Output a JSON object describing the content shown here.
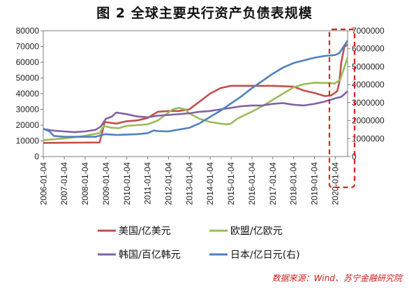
{
  "header": {
    "title": "图 2 全球主要央行资产负债表规模"
  },
  "footer": {
    "source": "数据来源：Wind、苏宁金融研究院"
  },
  "chart_data": {
    "type": "line",
    "title": "图 2 全球主要央行资产负债表规模",
    "x_ticks": [
      "2006-01-04",
      "2007-01-04",
      "2008-01-04",
      "2009-01-04",
      "2010-01-04",
      "2011-01-04",
      "2012-01-04",
      "2013-01-04",
      "2014-01-04",
      "2015-01-04",
      "2016-01-04",
      "2017-01-04",
      "2018-01-04",
      "2019-01-04",
      "2020-01-04"
    ],
    "x_range": [
      2006.0,
      2020.6
    ],
    "ylim_left": [
      0,
      80000
    ],
    "yticks_left": [
      0,
      10000,
      20000,
      30000,
      40000,
      50000,
      60000,
      70000,
      80000
    ],
    "ylim_right": [
      0,
      7000000
    ],
    "yticks_right": [
      0,
      1000000,
      2000000,
      3000000,
      4000000,
      5000000,
      6000000,
      7000000
    ],
    "grid": false,
    "legend_position": "bottom",
    "highlight": "dashed red box around 2020",
    "series": [
      {
        "name": "美国/亿美元",
        "color": "#c0504d",
        "axis": "left",
        "points": [
          [
            2006.0,
            8700
          ],
          [
            2007.0,
            8800
          ],
          [
            2008.0,
            8900
          ],
          [
            2008.7,
            9000
          ],
          [
            2008.8,
            14000
          ],
          [
            2008.95,
            22000
          ],
          [
            2009.5,
            21000
          ],
          [
            2010.0,
            22500
          ],
          [
            2010.5,
            23000
          ],
          [
            2011.0,
            24500
          ],
          [
            2011.5,
            28500
          ],
          [
            2012.0,
            29000
          ],
          [
            2012.5,
            29000
          ],
          [
            2013.0,
            30000
          ],
          [
            2013.5,
            35000
          ],
          [
            2014.0,
            40000
          ],
          [
            2014.5,
            43500
          ],
          [
            2015.0,
            45000
          ],
          [
            2016.0,
            45000
          ],
          [
            2017.0,
            45000
          ],
          [
            2018.0,
            44500
          ],
          [
            2018.5,
            42000
          ],
          [
            2019.0,
            40500
          ],
          [
            2019.5,
            38500
          ],
          [
            2019.8,
            38800
          ],
          [
            2020.1,
            41500
          ],
          [
            2020.2,
            47000
          ],
          [
            2020.3,
            60000
          ],
          [
            2020.45,
            70000
          ],
          [
            2020.6,
            71000
          ]
        ]
      },
      {
        "name": "欧盟/亿欧元",
        "color": "#9bbb59",
        "axis": "left",
        "points": [
          [
            2006.0,
            10500
          ],
          [
            2007.0,
            11500
          ],
          [
            2007.9,
            13000
          ],
          [
            2008.7,
            15000
          ],
          [
            2008.9,
            19500
          ],
          [
            2009.2,
            18500
          ],
          [
            2009.6,
            18000
          ],
          [
            2010.0,
            19500
          ],
          [
            2010.5,
            20000
          ],
          [
            2011.0,
            20500
          ],
          [
            2011.5,
            23000
          ],
          [
            2011.9,
            27000
          ],
          [
            2012.2,
            30000
          ],
          [
            2012.5,
            31000
          ],
          [
            2012.8,
            30000
          ],
          [
            2013.0,
            27500
          ],
          [
            2013.5,
            24000
          ],
          [
            2014.0,
            22000
          ],
          [
            2014.5,
            21000
          ],
          [
            2014.8,
            20500
          ],
          [
            2015.0,
            21000
          ],
          [
            2015.3,
            24000
          ],
          [
            2015.6,
            26000
          ],
          [
            2016.0,
            28500
          ],
          [
            2016.5,
            32000
          ],
          [
            2017.0,
            36000
          ],
          [
            2017.5,
            40000
          ],
          [
            2018.0,
            44000
          ],
          [
            2018.5,
            46000
          ],
          [
            2019.0,
            47000
          ],
          [
            2019.6,
            46800
          ],
          [
            2020.0,
            46500
          ],
          [
            2020.25,
            49000
          ],
          [
            2020.4,
            55000
          ],
          [
            2020.6,
            63000
          ]
        ]
      },
      {
        "name": "韩国/百亿韩元",
        "color": "#8064a2",
        "axis": "left",
        "points": [
          [
            2006.0,
            17500
          ],
          [
            2006.5,
            16500
          ],
          [
            2007.0,
            16000
          ],
          [
            2007.5,
            15500
          ],
          [
            2008.0,
            16000
          ],
          [
            2008.5,
            17000
          ],
          [
            2008.75,
            19000
          ],
          [
            2009.0,
            24000
          ],
          [
            2009.3,
            25500
          ],
          [
            2009.5,
            28000
          ],
          [
            2010.0,
            27000
          ],
          [
            2010.5,
            25500
          ],
          [
            2011.0,
            25000
          ],
          [
            2011.5,
            26000
          ],
          [
            2012.0,
            26500
          ],
          [
            2012.5,
            27000
          ],
          [
            2013.0,
            27500
          ],
          [
            2013.5,
            28500
          ],
          [
            2014.0,
            29000
          ],
          [
            2014.5,
            30000
          ],
          [
            2015.0,
            31000
          ],
          [
            2015.5,
            32000
          ],
          [
            2016.0,
            32500
          ],
          [
            2016.5,
            32500
          ],
          [
            2017.0,
            33500
          ],
          [
            2017.5,
            34000
          ],
          [
            2018.0,
            33000
          ],
          [
            2018.5,
            32500
          ],
          [
            2019.0,
            33500
          ],
          [
            2019.5,
            35000
          ],
          [
            2020.0,
            37000
          ],
          [
            2020.3,
            38000
          ],
          [
            2020.6,
            41500
          ]
        ]
      },
      {
        "name": "日本/亿日元(右)",
        "color": "#4f81bd",
        "axis": "right",
        "points": [
          [
            2006.0,
            1550000
          ],
          [
            2006.3,
            1400000
          ],
          [
            2006.5,
            1150000
          ],
          [
            2007.0,
            1100000
          ],
          [
            2007.5,
            1100000
          ],
          [
            2008.0,
            1100000
          ],
          [
            2008.5,
            1100000
          ],
          [
            2008.8,
            1200000
          ],
          [
            2009.0,
            1250000
          ],
          [
            2009.5,
            1200000
          ],
          [
            2010.0,
            1220000
          ],
          [
            2010.5,
            1250000
          ],
          [
            2011.0,
            1300000
          ],
          [
            2011.3,
            1450000
          ],
          [
            2011.5,
            1420000
          ],
          [
            2012.0,
            1400000
          ],
          [
            2012.5,
            1500000
          ],
          [
            2013.0,
            1600000
          ],
          [
            2013.5,
            1850000
          ],
          [
            2014.0,
            2200000
          ],
          [
            2014.5,
            2550000
          ],
          [
            2015.0,
            2950000
          ],
          [
            2015.5,
            3350000
          ],
          [
            2016.0,
            3800000
          ],
          [
            2016.5,
            4200000
          ],
          [
            2017.0,
            4600000
          ],
          [
            2017.5,
            4950000
          ],
          [
            2018.0,
            5200000
          ],
          [
            2018.5,
            5350000
          ],
          [
            2019.0,
            5500000
          ],
          [
            2019.5,
            5600000
          ],
          [
            2020.0,
            5650000
          ],
          [
            2020.2,
            5750000
          ],
          [
            2020.4,
            6100000
          ],
          [
            2020.6,
            6450000
          ]
        ]
      }
    ]
  }
}
